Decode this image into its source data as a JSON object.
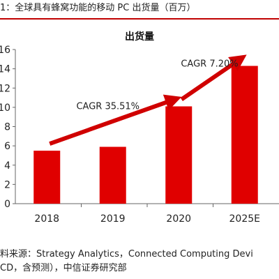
{
  "figure": {
    "title": "1：全球具有蜂窝功能的移动 PC 出货量（百万）",
    "source_line1": "料来源：Strategy Analytics，Connected Computing Devi",
    "source_line2": "CD，含预测），中信证券研究部"
  },
  "colors": {
    "bar": "#e00000",
    "arrow": "#d00000",
    "accent_rule": "#c00000",
    "axis": "#666666"
  },
  "chart_data": {
    "type": "bar",
    "title": "出货量",
    "categories": [
      "2018",
      "2019",
      "2020",
      "2025E"
    ],
    "values": [
      5.5,
      5.9,
      10.1,
      14.3
    ],
    "ylim": [
      0,
      16
    ],
    "yticks": [
      0,
      2,
      4,
      6,
      8,
      10,
      12,
      14,
      16
    ],
    "ytick_labels": [
      "0",
      "2",
      "4",
      "6",
      "8",
      "10",
      "12",
      "14",
      "16"
    ],
    "xlabel": "",
    "ylabel": "",
    "grid": false,
    "annotations": [
      {
        "text": "CAGR 35.51%",
        "from_category": "2018",
        "to_category": "2020"
      },
      {
        "text": "CAGR 7.20%",
        "from_category": "2020",
        "to_category": "2025E"
      }
    ]
  }
}
